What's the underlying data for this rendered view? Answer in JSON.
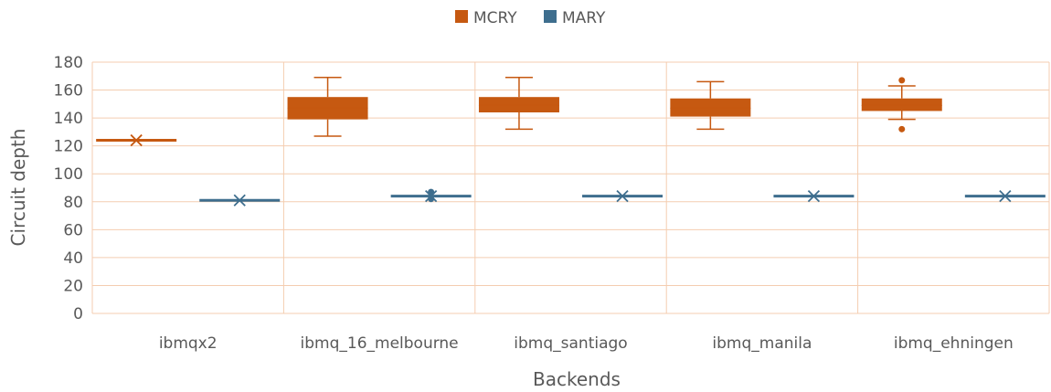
{
  "chart_data": {
    "type": "boxplot",
    "ylabel": "Circuit depth",
    "xlabel": "Backends",
    "ylim": [
      0,
      180
    ],
    "yticks": [
      0,
      20,
      40,
      60,
      80,
      100,
      120,
      140,
      160,
      180
    ],
    "grid": true,
    "legend_position": "top-center",
    "categories": [
      "ibmqx2",
      "ibmq_16_melbourne",
      "ibmq_santiago",
      "ibmq_manila",
      "ibmq_ehningen"
    ],
    "series": [
      {
        "name": "MCRY",
        "color": "#C65911",
        "boxes": [
          {
            "whisker_low": 124,
            "q1": 124,
            "median": 124,
            "q3": 124,
            "whisker_high": 124,
            "mean": 124,
            "outliers": []
          },
          {
            "whisker_low": 127,
            "q1": 139,
            "median": 147,
            "q3": 155,
            "whisker_high": 169,
            "mean": 147,
            "outliers": []
          },
          {
            "whisker_low": 132,
            "q1": 144,
            "median": 149,
            "q3": 155,
            "whisker_high": 169,
            "mean": 149,
            "outliers": []
          },
          {
            "whisker_low": 132,
            "q1": 141,
            "median": 147,
            "q3": 154,
            "whisker_high": 166,
            "mean": 147,
            "outliers": []
          },
          {
            "whisker_low": 139,
            "q1": 145,
            "median": 149,
            "q3": 154,
            "whisker_high": 163,
            "mean": 149,
            "outliers": [
              167,
              132
            ]
          }
        ]
      },
      {
        "name": "MARY",
        "color": "#3E6E8E",
        "boxes": [
          {
            "whisker_low": 81,
            "q1": 81,
            "median": 81,
            "q3": 81,
            "whisker_high": 81,
            "mean": 81,
            "outliers": []
          },
          {
            "whisker_low": 84,
            "q1": 84,
            "median": 84,
            "q3": 84,
            "whisker_high": 84,
            "mean": 84,
            "outliers": [
              87,
              82
            ]
          },
          {
            "whisker_low": 84,
            "q1": 84,
            "median": 84,
            "q3": 84,
            "whisker_high": 84,
            "mean": 84,
            "outliers": []
          },
          {
            "whisker_low": 84,
            "q1": 84,
            "median": 84,
            "q3": 84,
            "whisker_high": 84,
            "mean": 84,
            "outliers": []
          },
          {
            "whisker_low": 84,
            "q1": 84,
            "median": 84,
            "q3": 84,
            "whisker_high": 84,
            "mean": 84,
            "outliers": []
          }
        ]
      }
    ]
  }
}
